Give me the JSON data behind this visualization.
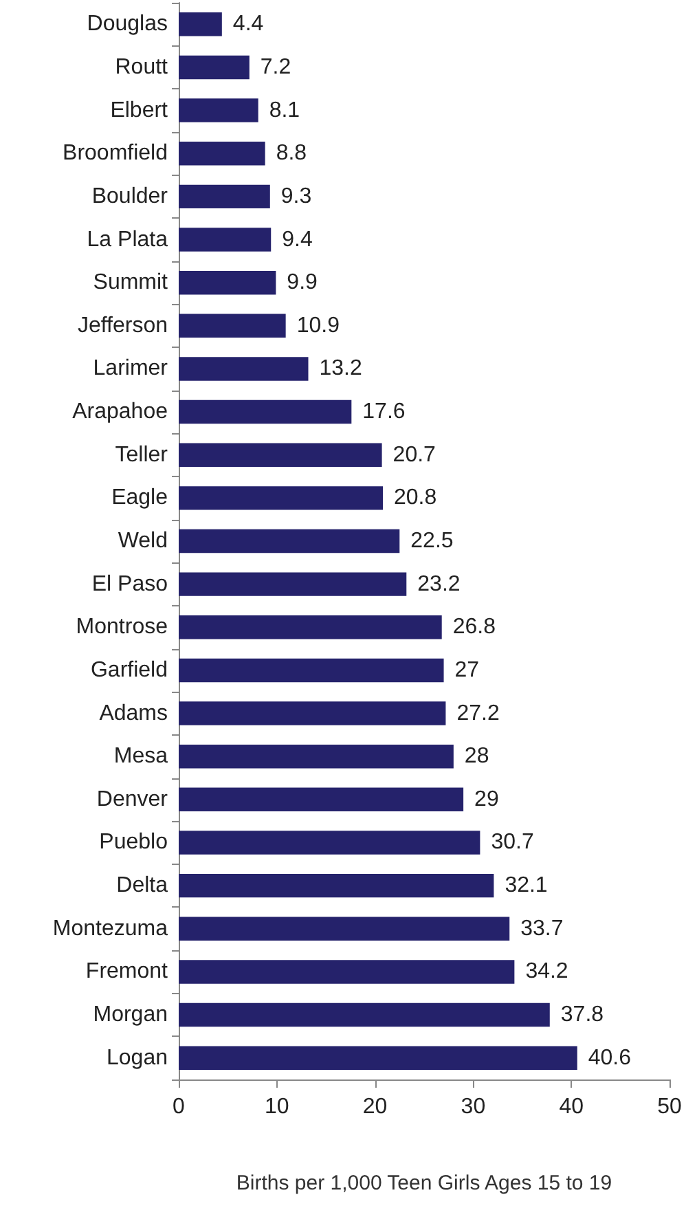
{
  "chart_data": {
    "type": "bar",
    "orientation": "horizontal",
    "categories": [
      "Douglas",
      "Routt",
      "Elbert",
      "Broomfield",
      "Boulder",
      "La Plata",
      "Summit",
      "Jefferson",
      "Larimer",
      "Arapahoe",
      "Teller",
      "Eagle",
      "Weld",
      "El Paso",
      "Montrose",
      "Garfield",
      "Adams",
      "Mesa",
      "Denver",
      "Pueblo",
      "Delta",
      "Montezuma",
      "Fremont",
      "Morgan",
      "Logan"
    ],
    "values": [
      4.4,
      7.2,
      8.1,
      8.8,
      9.3,
      9.4,
      9.9,
      10.9,
      13.2,
      17.6,
      20.7,
      20.8,
      22.5,
      23.2,
      26.8,
      27,
      27.2,
      28,
      29,
      30.7,
      32.1,
      33.7,
      34.2,
      37.8,
      40.6
    ],
    "color": "#25226b",
    "xlim": [
      0,
      50
    ],
    "xticks": [
      0,
      10,
      20,
      30,
      40,
      50
    ],
    "xlabel": "Births per 1,000 Teen Girls Ages 15 to 19",
    "data_labels": true,
    "grid": false
  }
}
